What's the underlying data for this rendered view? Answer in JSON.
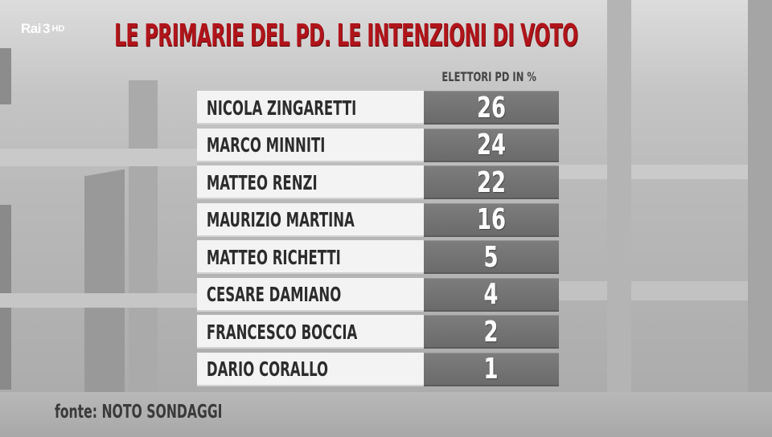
{
  "channel": {
    "brand": "Rai",
    "number": "3",
    "quality": "HD"
  },
  "title": "LE PRIMARIE DEL PD. LE INTENZIONI DI VOTO",
  "source": "fonte: NOTO SONDAGGI",
  "colors": {
    "title": "#b0141a",
    "name_cell": "#f3f3f3",
    "value_cell": "#737373",
    "background": "#bdbdbd"
  },
  "chart_data": {
    "type": "table",
    "column_header": "ELETTORI PD IN %",
    "categories": [
      "NICOLA ZINGARETTI",
      "MARCO MINNITI",
      "MATTEO RENZI",
      "MAURIZIO MARTINA",
      "MATTEO RICHETTI",
      "CESARE DAMIANO",
      "FRANCESCO BOCCIA",
      "DARIO CORALLO"
    ],
    "values": [
      26,
      24,
      22,
      16,
      5,
      4,
      2,
      1
    ]
  }
}
